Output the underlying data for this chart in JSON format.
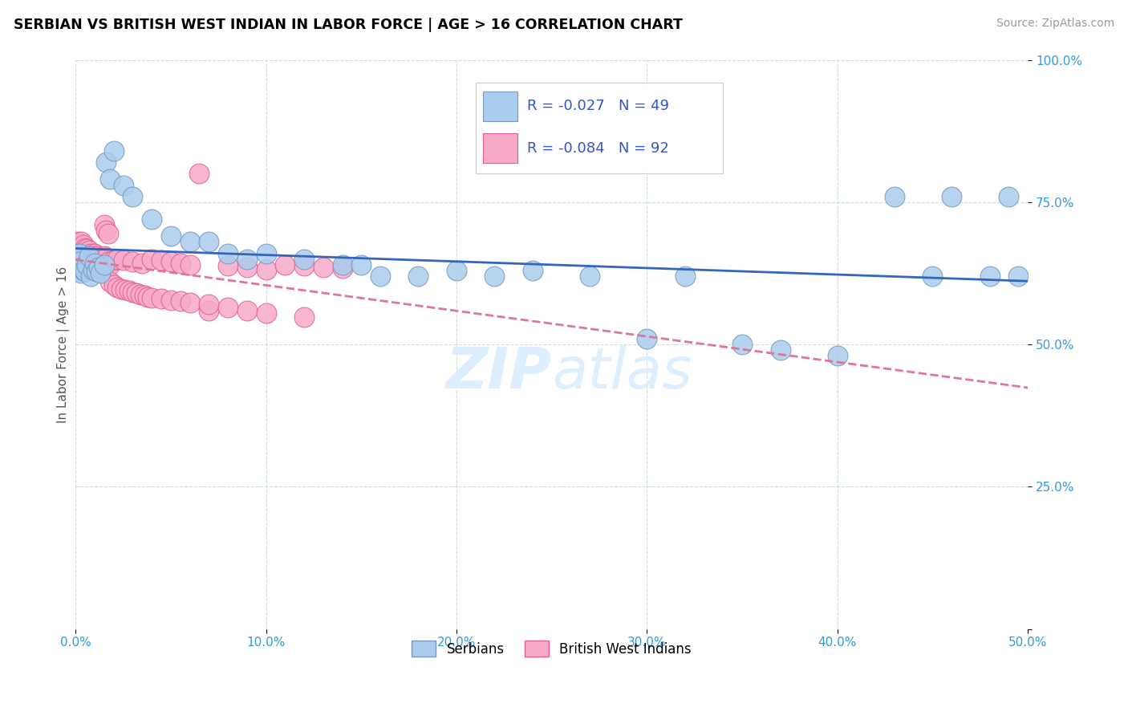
{
  "title": "SERBIAN VS BRITISH WEST INDIAN IN LABOR FORCE | AGE > 16 CORRELATION CHART",
  "source": "Source: ZipAtlas.com",
  "ylabel": "In Labor Force | Age > 16",
  "xlim": [
    0.0,
    0.5
  ],
  "ylim": [
    0.0,
    1.0
  ],
  "xticks": [
    0.0,
    0.1,
    0.2,
    0.3,
    0.4,
    0.5
  ],
  "yticks": [
    0.0,
    0.25,
    0.5,
    0.75,
    1.0
  ],
  "xticklabels": [
    "0.0%",
    "10.0%",
    "20.0%",
    "30.0%",
    "40.0%",
    "50.0%"
  ],
  "yticklabels": [
    "",
    "25.0%",
    "50.0%",
    "75.0%",
    "100.0%"
  ],
  "legend_R_serbian": "-0.027",
  "legend_N_serbian": "49",
  "legend_R_bwi": "-0.084",
  "legend_N_bwi": "92",
  "serbian_color": "#aaccee",
  "bwi_color": "#f8aac8",
  "serbian_edge": "#7799bb",
  "bwi_edge": "#e06090",
  "trend_serbian_color": "#3366bb",
  "trend_bwi_color": "#dd7799",
  "watermark_color": "#ddeeff",
  "serbian_x": [
    0.001,
    0.001,
    0.002,
    0.002,
    0.003,
    0.003,
    0.004,
    0.005,
    0.006,
    0.007,
    0.008,
    0.009,
    0.01,
    0.011,
    0.012,
    0.013,
    0.015,
    0.016,
    0.018,
    0.02,
    0.025,
    0.03,
    0.04,
    0.05,
    0.06,
    0.07,
    0.08,
    0.09,
    0.1,
    0.12,
    0.14,
    0.15,
    0.16,
    0.18,
    0.2,
    0.22,
    0.24,
    0.27,
    0.3,
    0.32,
    0.35,
    0.37,
    0.4,
    0.43,
    0.45,
    0.46,
    0.48,
    0.49,
    0.495
  ],
  "serbian_y": [
    0.65,
    0.64,
    0.66,
    0.645,
    0.635,
    0.625,
    0.63,
    0.628,
    0.64,
    0.655,
    0.62,
    0.632,
    0.642,
    0.628,
    0.635,
    0.625,
    0.64,
    0.82,
    0.79,
    0.84,
    0.78,
    0.76,
    0.72,
    0.69,
    0.68,
    0.68,
    0.66,
    0.65,
    0.66,
    0.65,
    0.64,
    0.64,
    0.62,
    0.62,
    0.63,
    0.62,
    0.63,
    0.62,
    0.51,
    0.62,
    0.5,
    0.49,
    0.48,
    0.76,
    0.62,
    0.76,
    0.62,
    0.76,
    0.62
  ],
  "bwi_x": [
    0.001,
    0.001,
    0.001,
    0.001,
    0.002,
    0.002,
    0.002,
    0.002,
    0.003,
    0.003,
    0.003,
    0.003,
    0.003,
    0.004,
    0.004,
    0.004,
    0.004,
    0.004,
    0.005,
    0.005,
    0.005,
    0.005,
    0.005,
    0.006,
    0.006,
    0.006,
    0.006,
    0.007,
    0.007,
    0.007,
    0.007,
    0.008,
    0.008,
    0.008,
    0.009,
    0.009,
    0.01,
    0.01,
    0.01,
    0.011,
    0.011,
    0.012,
    0.013,
    0.014,
    0.015,
    0.015,
    0.016,
    0.017,
    0.018,
    0.02,
    0.022,
    0.025,
    0.03,
    0.035,
    0.04,
    0.045,
    0.05,
    0.055,
    0.06,
    0.065,
    0.07,
    0.08,
    0.09,
    0.1,
    0.11,
    0.12,
    0.13,
    0.14,
    0.015,
    0.016,
    0.017,
    0.018,
    0.02,
    0.022,
    0.024,
    0.026,
    0.028,
    0.03,
    0.032,
    0.034,
    0.036,
    0.038,
    0.04,
    0.045,
    0.05,
    0.055,
    0.06,
    0.07,
    0.08,
    0.09,
    0.1,
    0.12
  ],
  "bwi_y": [
    0.68,
    0.66,
    0.65,
    0.64,
    0.67,
    0.66,
    0.65,
    0.64,
    0.68,
    0.665,
    0.655,
    0.645,
    0.635,
    0.675,
    0.66,
    0.65,
    0.64,
    0.63,
    0.67,
    0.658,
    0.648,
    0.638,
    0.628,
    0.668,
    0.655,
    0.645,
    0.635,
    0.665,
    0.652,
    0.642,
    0.632,
    0.66,
    0.648,
    0.638,
    0.655,
    0.645,
    0.66,
    0.648,
    0.638,
    0.655,
    0.645,
    0.652,
    0.645,
    0.64,
    0.655,
    0.648,
    0.652,
    0.645,
    0.64,
    0.648,
    0.65,
    0.648,
    0.645,
    0.642,
    0.65,
    0.648,
    0.645,
    0.642,
    0.64,
    0.8,
    0.56,
    0.638,
    0.635,
    0.632,
    0.64,
    0.638,
    0.636,
    0.634,
    0.71,
    0.7,
    0.695,
    0.61,
    0.605,
    0.6,
    0.598,
    0.596,
    0.594,
    0.592,
    0.59,
    0.588,
    0.586,
    0.584,
    0.582,
    0.58,
    0.578,
    0.576,
    0.574,
    0.57,
    0.565,
    0.56,
    0.555,
    0.548
  ]
}
